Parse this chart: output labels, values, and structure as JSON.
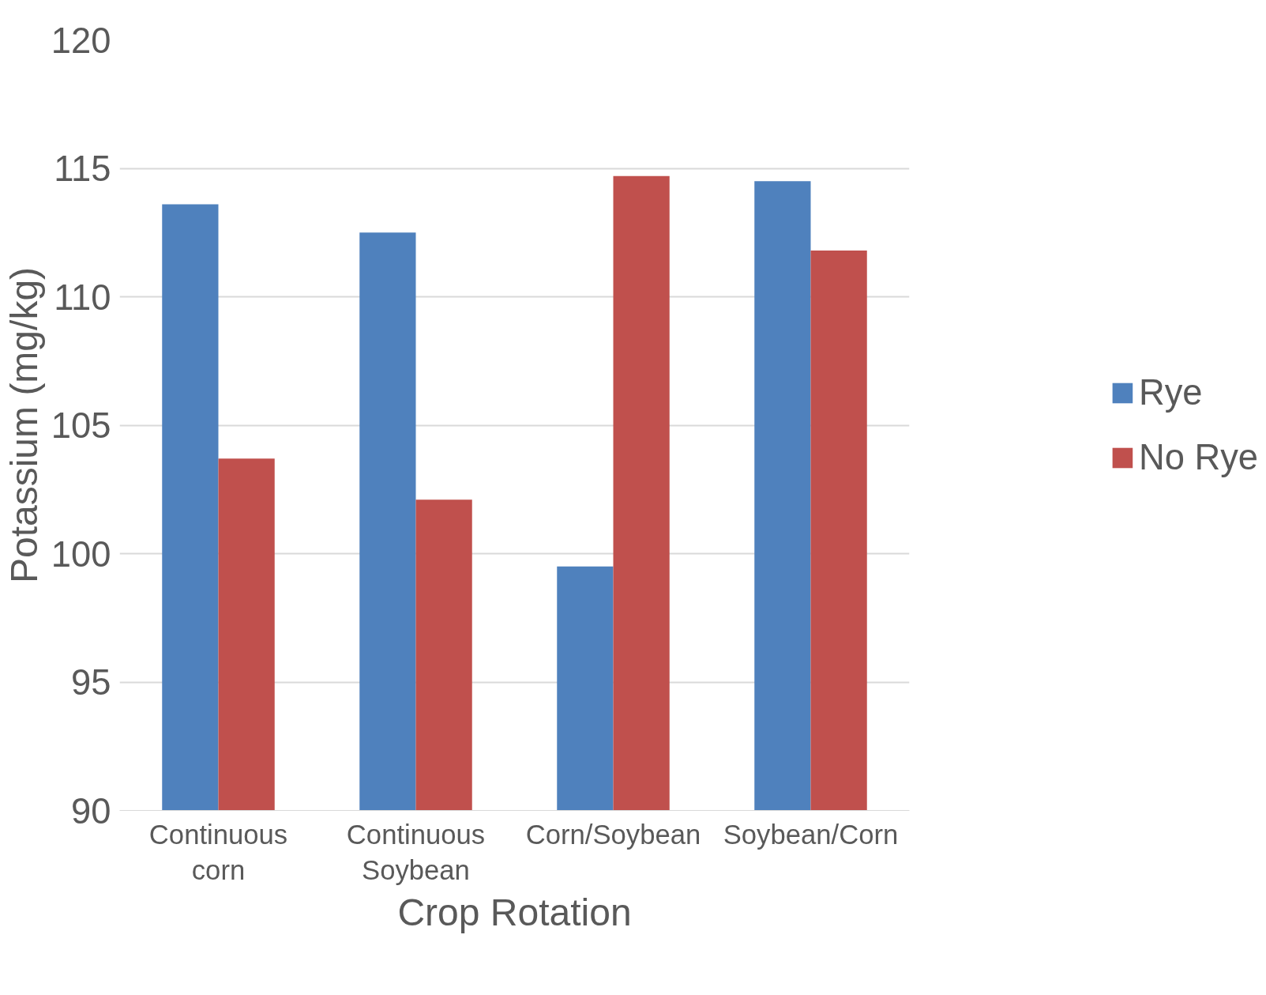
{
  "chart_data": {
    "type": "bar",
    "xlabel": "Crop Rotation",
    "ylabel": "Potassium (mg/kg)",
    "categories": [
      "Continuous corn",
      "Continuous Soybean",
      "Corn/Soybean",
      "Soybean/Corn"
    ],
    "series": [
      {
        "name": "Rye",
        "color": "#4f81bd",
        "values": [
          113.6,
          112.5,
          99.5,
          114.5
        ]
      },
      {
        "name": "No Rye",
        "color": "#c0504d",
        "values": [
          103.7,
          102.1,
          114.7,
          111.8
        ]
      }
    ],
    "ylim": [
      90,
      120
    ],
    "yticks": [
      90,
      95,
      100,
      105,
      110,
      115,
      120
    ],
    "grid": "y",
    "legend": "right"
  }
}
